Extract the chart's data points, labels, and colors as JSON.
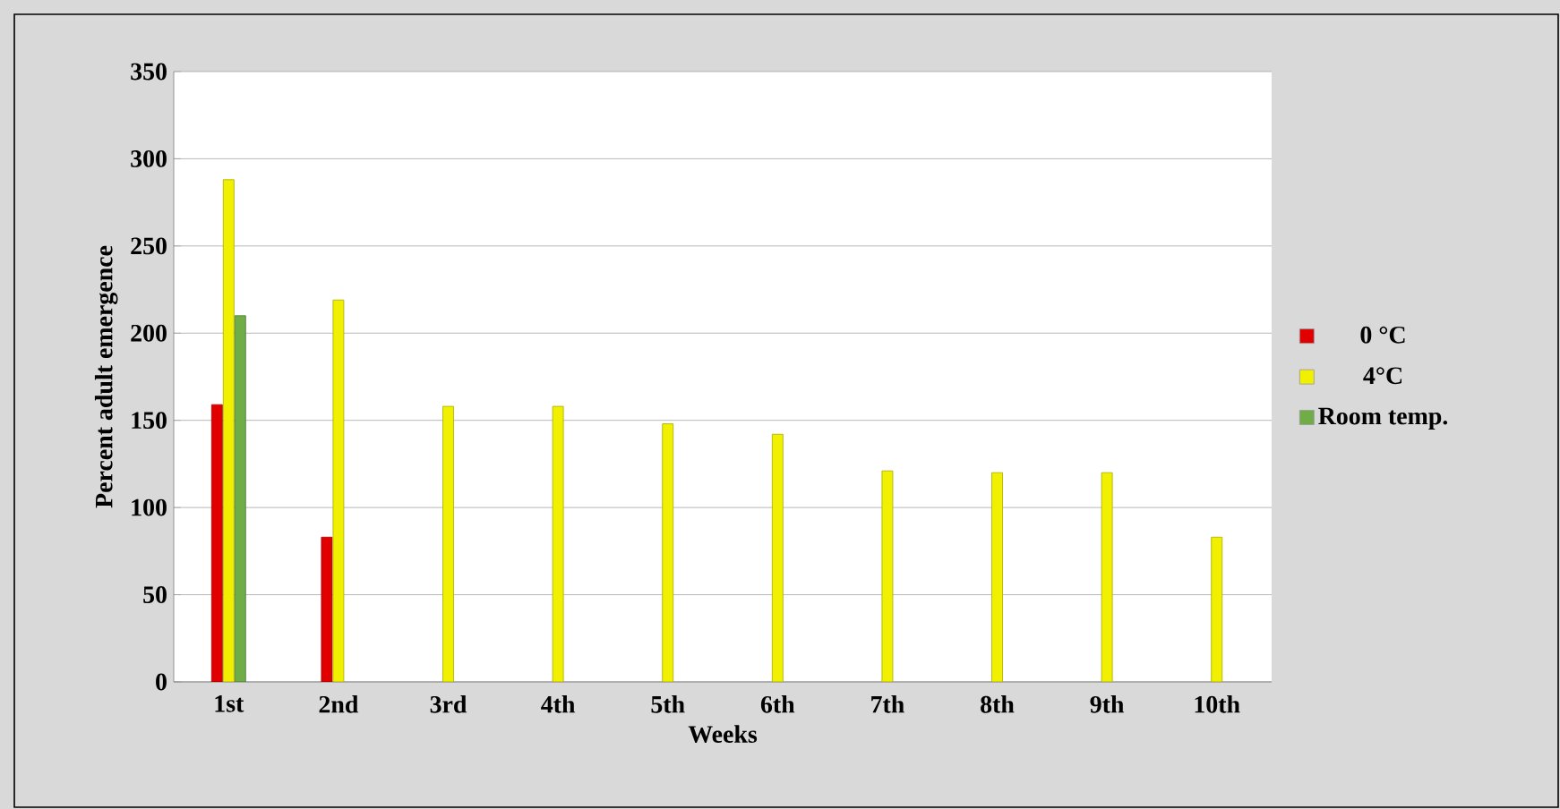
{
  "chart_data": {
    "type": "bar",
    "xlabel": "Weeks",
    "ylabel": "Percent adult emergence",
    "categories": [
      "1st",
      "2nd",
      "3rd",
      "4th",
      "5th",
      "6th",
      "7th",
      "8th",
      "9th",
      "10th"
    ],
    "series": [
      {
        "name": "0 °C",
        "color": "#e00000",
        "values": [
          159,
          83,
          null,
          null,
          null,
          null,
          null,
          null,
          null,
          null
        ]
      },
      {
        "name": "4°C",
        "color": "#f0f000",
        "values": [
          288,
          219,
          158,
          158,
          148,
          142,
          121,
          120,
          120,
          83
        ]
      },
      {
        "name": "Room temp.",
        "color": "#70ad47",
        "values": [
          210,
          null,
          null,
          null,
          null,
          null,
          null,
          null,
          null,
          null
        ]
      }
    ],
    "ylim": [
      0,
      350
    ],
    "yticks": [
      0,
      50,
      100,
      150,
      200,
      250,
      300,
      350
    ],
    "grid": "y",
    "legend": "right"
  }
}
